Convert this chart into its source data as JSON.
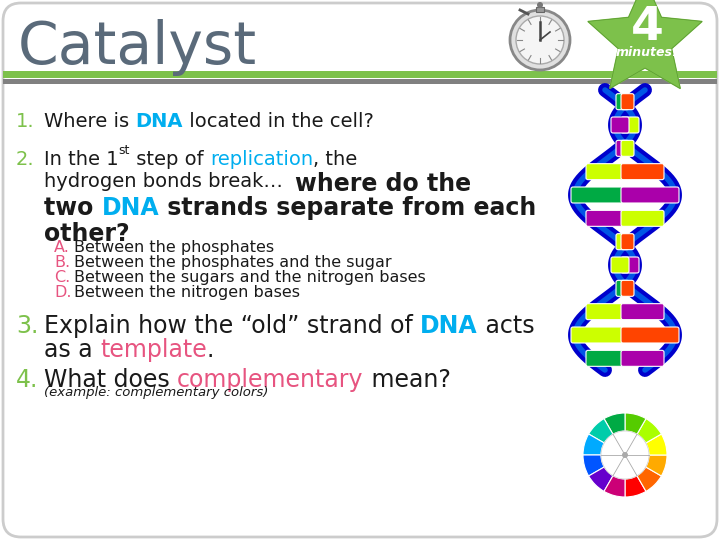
{
  "background_color": "#ffffff",
  "header_line_green": "#7dc14b",
  "header_line_gray": "#808080",
  "title_text": "Catalyst",
  "title_color": "#5a6a7a",
  "title_fontsize": 42,
  "number_color": "#7dc14b",
  "dna_color": "#00aeef",
  "replication_color": "#00aeef",
  "template_color": "#e75480",
  "complementary_color": "#e75480",
  "abcd_color": "#e75480",
  "body_color": "#1a1a1a",
  "star_color": "#7dc14b",
  "outer_border_color": "#cccccc",
  "choices": [
    [
      "A.",
      "Between the phosphates"
    ],
    [
      "B.",
      "Between the phosphates and the sugar"
    ],
    [
      "C.",
      "Between the sugars and the nitrogen bases"
    ],
    [
      "D.",
      "Between the nitrogen bases"
    ]
  ],
  "wheel_colors": [
    "#ff0000",
    "#ff6600",
    "#ffaa00",
    "#ffff00",
    "#aaff00",
    "#55cc00",
    "#00aa44",
    "#00ccaa",
    "#00aaff",
    "#0055ff",
    "#6600cc",
    "#cc0077"
  ]
}
